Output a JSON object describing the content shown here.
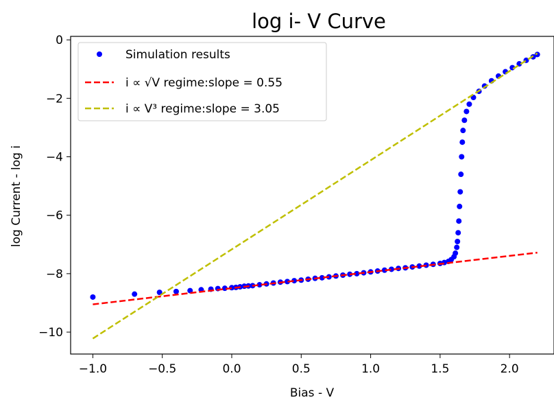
{
  "chart_data": {
    "type": "scatter",
    "title": "log i- V Curve",
    "xlabel": "Bias -  V",
    "ylabel": "log Current - log i",
    "xlim": [
      -1.16,
      2.32
    ],
    "ylim": [
      -10.75,
      0.12
    ],
    "x_ticks": [
      -1.0,
      -0.5,
      0.0,
      0.5,
      1.0,
      1.5,
      2.0
    ],
    "x_tick_labels": [
      "−1.0",
      "−0.5",
      "0.0",
      "0.5",
      "1.0",
      "1.5",
      "2.0"
    ],
    "y_ticks": [
      0,
      -2,
      -4,
      -6,
      -8,
      -10
    ],
    "y_tick_labels": [
      "0",
      "−2",
      "−4",
      "−6",
      "−8",
      "−10"
    ],
    "grid": false,
    "legend_position": "top-left",
    "series": [
      {
        "name": "Simulation results",
        "kind": "scatter",
        "color": "#0000ff",
        "points": [
          [
            -1.0,
            -8.8
          ],
          [
            -0.7,
            -8.7
          ],
          [
            -0.52,
            -8.64
          ],
          [
            -0.4,
            -8.61
          ],
          [
            -0.3,
            -8.58
          ],
          [
            -0.22,
            -8.55
          ],
          [
            -0.15,
            -8.53
          ],
          [
            -0.1,
            -8.51
          ],
          [
            -0.05,
            -8.5
          ],
          [
            0.0,
            -8.48
          ],
          [
            0.03,
            -8.47
          ],
          [
            0.06,
            -8.45
          ],
          [
            0.09,
            -8.43
          ],
          [
            0.12,
            -8.42
          ],
          [
            0.15,
            -8.41
          ],
          [
            0.2,
            -8.38
          ],
          [
            0.25,
            -8.35
          ],
          [
            0.3,
            -8.32
          ],
          [
            0.35,
            -8.29
          ],
          [
            0.4,
            -8.27
          ],
          [
            0.45,
            -8.24
          ],
          [
            0.5,
            -8.22
          ],
          [
            0.55,
            -8.19
          ],
          [
            0.6,
            -8.16
          ],
          [
            0.65,
            -8.14
          ],
          [
            0.7,
            -8.11
          ],
          [
            0.75,
            -8.08
          ],
          [
            0.8,
            -8.05
          ],
          [
            0.85,
            -8.02
          ],
          [
            0.9,
            -8.0
          ],
          [
            0.95,
            -7.97
          ],
          [
            1.0,
            -7.94
          ],
          [
            1.05,
            -7.91
          ],
          [
            1.1,
            -7.88
          ],
          [
            1.15,
            -7.85
          ],
          [
            1.2,
            -7.82
          ],
          [
            1.25,
            -7.8
          ],
          [
            1.3,
            -7.77
          ],
          [
            1.35,
            -7.74
          ],
          [
            1.4,
            -7.71
          ],
          [
            1.45,
            -7.68
          ],
          [
            1.5,
            -7.65
          ],
          [
            1.53,
            -7.62
          ],
          [
            1.56,
            -7.58
          ],
          [
            1.58,
            -7.52
          ],
          [
            1.6,
            -7.42
          ],
          [
            1.61,
            -7.3
          ],
          [
            1.62,
            -7.1
          ],
          [
            1.625,
            -6.9
          ],
          [
            1.63,
            -6.6
          ],
          [
            1.635,
            -6.2
          ],
          [
            1.64,
            -5.7
          ],
          [
            1.645,
            -5.2
          ],
          [
            1.65,
            -4.6
          ],
          [
            1.655,
            -4.0
          ],
          [
            1.66,
            -3.5
          ],
          [
            1.665,
            -3.1
          ],
          [
            1.675,
            -2.75
          ],
          [
            1.69,
            -2.45
          ],
          [
            1.71,
            -2.2
          ],
          [
            1.74,
            -1.97
          ],
          [
            1.78,
            -1.76
          ],
          [
            1.82,
            -1.58
          ],
          [
            1.87,
            -1.4
          ],
          [
            1.92,
            -1.24
          ],
          [
            1.97,
            -1.09
          ],
          [
            2.02,
            -0.95
          ],
          [
            2.07,
            -0.82
          ],
          [
            2.12,
            -0.7
          ],
          [
            2.17,
            -0.58
          ],
          [
            2.2,
            -0.5
          ]
        ]
      },
      {
        "name": "i ∝ √V regime:slope = 0.55",
        "kind": "line",
        "style": "dashed",
        "color": "#ff0000",
        "points": [
          [
            -1.0,
            -9.05
          ],
          [
            2.2,
            -7.28
          ]
        ]
      },
      {
        "name": "i ∝ V³ regime:slope = 3.05",
        "kind": "line",
        "style": "dashed",
        "color": "#bfbf00",
        "points": [
          [
            -1.0,
            -10.22
          ],
          [
            2.2,
            -0.46
          ]
        ]
      }
    ]
  }
}
